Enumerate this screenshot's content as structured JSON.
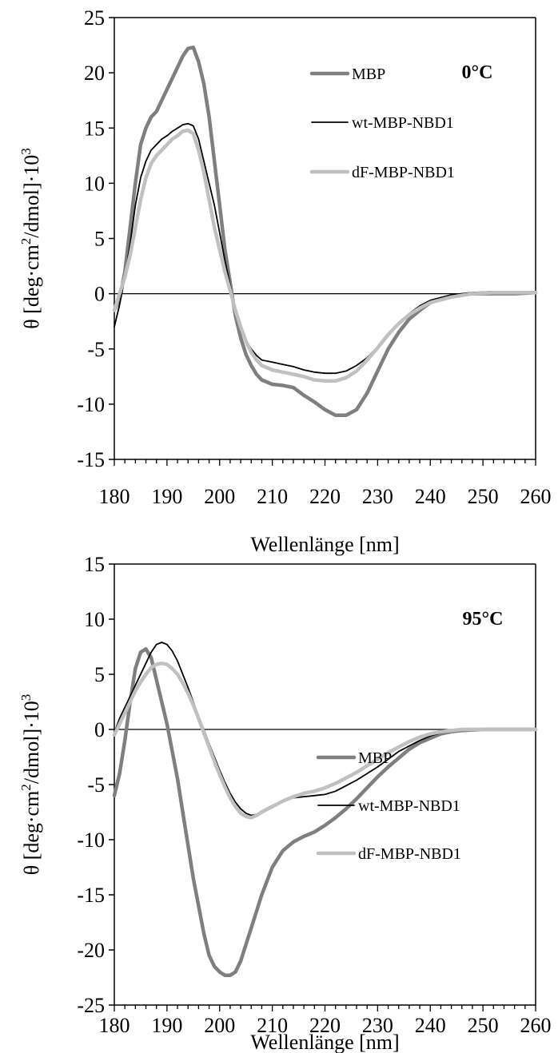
{
  "colors": {
    "MBP": "#7f7f7f",
    "wt-MBP-NBD1": "#000000",
    "dF-MBP-NBD1": "#c0c0c0"
  },
  "chart_data": [
    {
      "type": "line",
      "annotation": "0°C",
      "xlabel": "Wellenlänge [nm]",
      "ylabel_main": "θ [deg·cm",
      "ylabel_sup": "2",
      "ylabel_mid": "/dmol]·10",
      "ylabel_sup2": "3",
      "xlim": [
        180,
        260
      ],
      "ylim": [
        -15,
        25
      ],
      "xticks": [
        180,
        190,
        200,
        210,
        220,
        230,
        240,
        250,
        260
      ],
      "yticks": [
        -15,
        -10,
        -5,
        0,
        5,
        10,
        15,
        20,
        25
      ],
      "legend": [
        "MBP",
        "wt-MBP-NBD1",
        "dF-MBP-NBD1"
      ],
      "series": [
        {
          "name": "MBP",
          "x": [
            180,
            181,
            182,
            183,
            184,
            185,
            186,
            187,
            188,
            189,
            190,
            191,
            192,
            193,
            194,
            195,
            196,
            197,
            198,
            199,
            200,
            201,
            202,
            203,
            204,
            205,
            206,
            207,
            208,
            210,
            212,
            214,
            216,
            218,
            220,
            222,
            224,
            226,
            228,
            230,
            232,
            234,
            236,
            238,
            240,
            244,
            248,
            252,
            256,
            260
          ],
          "y": [
            -1.5,
            -0.5,
            2,
            6,
            10,
            13.5,
            15,
            16,
            16.5,
            17.5,
            18.5,
            19.5,
            20.5,
            21.5,
            22.2,
            22.3,
            21,
            19,
            16,
            12,
            8,
            4,
            1,
            -2,
            -4,
            -5.5,
            -6.5,
            -7.3,
            -7.8,
            -8.2,
            -8.3,
            -8.5,
            -9.2,
            -9.8,
            -10.5,
            -11,
            -11,
            -10.5,
            -9,
            -7,
            -5,
            -3.5,
            -2.3,
            -1.5,
            -0.8,
            -0.2,
            0,
            0,
            0,
            0.1
          ]
        },
        {
          "name": "wt-MBP-NBD1",
          "x": [
            180,
            181,
            182,
            183,
            184,
            185,
            186,
            187,
            188,
            189,
            190,
            191,
            192,
            193,
            194,
            195,
            196,
            197,
            198,
            199,
            200,
            201,
            202,
            203,
            204,
            205,
            206,
            207,
            208,
            210,
            212,
            214,
            216,
            218,
            220,
            222,
            224,
            226,
            228,
            230,
            232,
            234,
            236,
            238,
            240,
            244,
            248,
            252,
            256,
            260
          ],
          "y": [
            -3,
            -1,
            1.5,
            4.5,
            8,
            10.5,
            12,
            13,
            13.5,
            14,
            14.3,
            14.7,
            15,
            15.3,
            15.4,
            15.2,
            14,
            12,
            10,
            8,
            5.5,
            3,
            0.8,
            -1.5,
            -3,
            -4.2,
            -5,
            -5.6,
            -6,
            -6.2,
            -6.4,
            -6.6,
            -6.9,
            -7.1,
            -7.2,
            -7.2,
            -7,
            -6.5,
            -5.8,
            -4.8,
            -3.7,
            -2.6,
            -1.8,
            -1.1,
            -0.6,
            -0.1,
            0.1,
            0.2,
            0.2,
            0.2
          ]
        },
        {
          "name": "dF-MBP-NBD1",
          "x": [
            180,
            181,
            182,
            183,
            184,
            185,
            186,
            187,
            188,
            189,
            190,
            191,
            192,
            193,
            194,
            195,
            196,
            197,
            198,
            199,
            200,
            201,
            202,
            203,
            204,
            205,
            206,
            207,
            208,
            210,
            212,
            214,
            216,
            218,
            220,
            222,
            224,
            226,
            228,
            230,
            232,
            234,
            236,
            238,
            240,
            244,
            248,
            252,
            256,
            260
          ],
          "y": [
            -1.5,
            0,
            1.5,
            3.5,
            6,
            8.5,
            10.5,
            11.8,
            12.5,
            13,
            13.5,
            14,
            14.3,
            14.7,
            14.8,
            14.5,
            13,
            11,
            8.5,
            6,
            4,
            2,
            0.3,
            -1.5,
            -3,
            -4.3,
            -5.3,
            -6,
            -6.5,
            -6.9,
            -7.1,
            -7.3,
            -7.5,
            -7.8,
            -7.9,
            -7.9,
            -7.6,
            -7,
            -6,
            -4.9,
            -3.7,
            -2.7,
            -1.9,
            -1.3,
            -0.8,
            -0.3,
            0,
            0.1,
            0.1,
            0.1
          ]
        }
      ]
    },
    {
      "type": "line",
      "annotation": "95°C",
      "xlabel": "Wellenlänge [nm]",
      "ylabel_main": "θ [deg·cm",
      "ylabel_sup": "2",
      "ylabel_mid": "/dmol]·10",
      "ylabel_sup2": "3",
      "xlim": [
        180,
        260
      ],
      "ylim": [
        -25,
        15
      ],
      "xticks": [
        180,
        190,
        200,
        210,
        220,
        230,
        240,
        250,
        260
      ],
      "yticks": [
        -25,
        -20,
        -15,
        -10,
        -5,
        0,
        5,
        10,
        15
      ],
      "legend": [
        "MBP",
        "wt-MBP-NBD1",
        "dF-MBP-NBD1"
      ],
      "series": [
        {
          "name": "MBP",
          "x": [
            180,
            181,
            182,
            183,
            184,
            185,
            186,
            187,
            188,
            189,
            190,
            191,
            192,
            193,
            194,
            195,
            196,
            197,
            198,
            199,
            200,
            201,
            202,
            203,
            204,
            205,
            206,
            207,
            208,
            210,
            212,
            214,
            216,
            218,
            220,
            222,
            224,
            226,
            228,
            230,
            232,
            234,
            236,
            238,
            240,
            242,
            244,
            246,
            250,
            255,
            260
          ],
          "y": [
            -6,
            -4,
            -1,
            2.5,
            5.5,
            7,
            7.3,
            6.5,
            4.5,
            2.5,
            0.5,
            -2,
            -4.5,
            -7.5,
            -10.5,
            -13.5,
            -16,
            -18.5,
            -20.5,
            -21.5,
            -22,
            -22.3,
            -22.3,
            -22,
            -21,
            -19.5,
            -18,
            -16.5,
            -15,
            -12.5,
            -11,
            -10.2,
            -9.7,
            -9.3,
            -8.7,
            -8,
            -7.2,
            -6.3,
            -5.3,
            -4.3,
            -3.4,
            -2.6,
            -1.8,
            -1.2,
            -0.8,
            -0.4,
            -0.2,
            -0.1,
            0,
            0,
            0
          ]
        },
        {
          "name": "wt-MBP-NBD1",
          "x": [
            180,
            181,
            182,
            183,
            184,
            185,
            186,
            187,
            188,
            189,
            190,
            191,
            192,
            193,
            194,
            195,
            196,
            197,
            198,
            199,
            200,
            201,
            202,
            203,
            204,
            205,
            206,
            207,
            208,
            210,
            212,
            214,
            216,
            218,
            220,
            222,
            224,
            226,
            228,
            230,
            232,
            234,
            236,
            238,
            240,
            242,
            244,
            246,
            250,
            255,
            260
          ],
          "y": [
            -0.3,
            1,
            2,
            3,
            4,
            5,
            6,
            7,
            7.7,
            7.9,
            7.7,
            7.1,
            6.2,
            5,
            3.8,
            2.5,
            1.2,
            0,
            -1.3,
            -2.5,
            -3.7,
            -4.8,
            -5.8,
            -6.6,
            -7.2,
            -7.6,
            -7.8,
            -7.7,
            -7.4,
            -6.9,
            -6.5,
            -6.2,
            -6.1,
            -6,
            -5.9,
            -5.6,
            -5.1,
            -4.6,
            -4,
            -3.4,
            -2.7,
            -2,
            -1.5,
            -1,
            -0.6,
            -0.3,
            -0.1,
            0,
            0,
            0,
            0
          ]
        },
        {
          "name": "dF-MBP-NBD1",
          "x": [
            180,
            181,
            182,
            183,
            184,
            185,
            186,
            187,
            188,
            189,
            190,
            191,
            192,
            193,
            194,
            195,
            196,
            197,
            198,
            199,
            200,
            201,
            202,
            203,
            204,
            205,
            206,
            207,
            208,
            210,
            212,
            214,
            216,
            218,
            220,
            222,
            224,
            226,
            228,
            230,
            232,
            234,
            236,
            238,
            240,
            242,
            244,
            246,
            250,
            255,
            260
          ],
          "y": [
            -0.5,
            0.5,
            1.5,
            2.5,
            3.5,
            4.3,
            5,
            5.6,
            5.9,
            6,
            5.9,
            5.5,
            5,
            4.2,
            3.3,
            2.2,
            1,
            -0.3,
            -1.6,
            -2.9,
            -4.1,
            -5.2,
            -6.2,
            -7,
            -7.6,
            -7.9,
            -8,
            -7.8,
            -7.5,
            -7,
            -6.5,
            -6.1,
            -5.8,
            -5.6,
            -5.3,
            -4.9,
            -4.4,
            -3.9,
            -3.3,
            -2.7,
            -2.1,
            -1.6,
            -1.1,
            -0.7,
            -0.4,
            -0.2,
            -0.1,
            0,
            0,
            0,
            0
          ]
        }
      ]
    }
  ]
}
